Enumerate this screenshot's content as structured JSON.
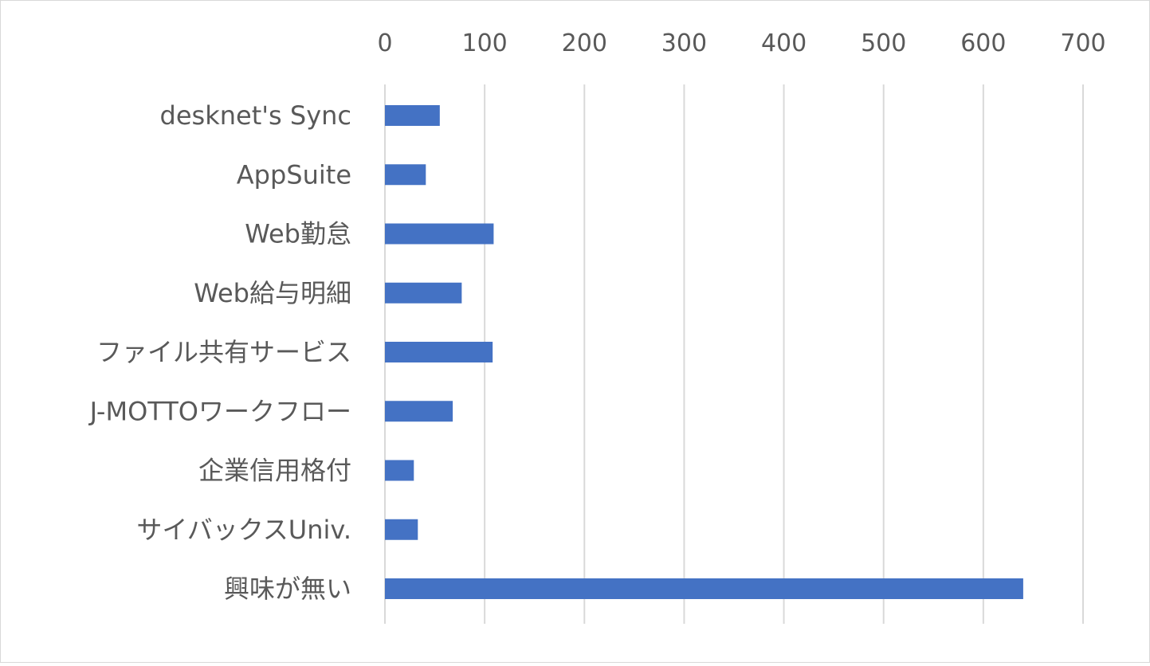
{
  "chart_data": {
    "type": "bar",
    "orientation": "horizontal",
    "categories": [
      "desknet's Sync",
      "AppSuite",
      "Web勤怠",
      "Web給与明細",
      "ファイル共有サービス",
      "J-MOTTOワークフロー",
      "企業信用格付",
      "サイバックスUniv.",
      "興味が無い"
    ],
    "values": [
      55,
      41,
      109,
      77,
      108,
      68,
      29,
      33,
      640
    ],
    "xlim": [
      0,
      700
    ],
    "xticks": [
      "0",
      "100",
      "200",
      "300",
      "400",
      "500",
      "600",
      "700"
    ],
    "xaxis_position": "top",
    "grid": true,
    "legend": "none",
    "bar_color": "#4472c4"
  }
}
